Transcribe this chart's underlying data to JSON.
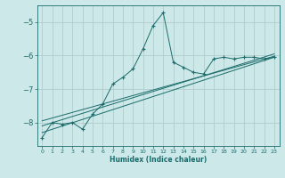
{
  "title": "",
  "xlabel": "Humidex (Indice chaleur)",
  "ylabel": "",
  "background_color": "#cde8e8",
  "grid_color": "#b0cccc",
  "line_color": "#1a6b6b",
  "xlim": [
    -0.5,
    23.5
  ],
  "ylim": [
    -8.7,
    -4.5
  ],
  "yticks": [
    -8,
    -7,
    -6,
    -5
  ],
  "xticks": [
    0,
    1,
    2,
    3,
    4,
    5,
    6,
    7,
    8,
    9,
    10,
    11,
    12,
    13,
    14,
    15,
    16,
    17,
    18,
    19,
    20,
    21,
    22,
    23
  ],
  "main_x": [
    0,
    1,
    2,
    3,
    4,
    5,
    6,
    7,
    8,
    9,
    10,
    11,
    12,
    13,
    14,
    15,
    16,
    17,
    18,
    19,
    20,
    21,
    22,
    23
  ],
  "main_y": [
    -8.45,
    -8.0,
    -8.05,
    -8.0,
    -8.2,
    -7.75,
    -7.45,
    -6.85,
    -6.65,
    -6.4,
    -5.8,
    -5.1,
    -4.72,
    -6.2,
    -6.35,
    -6.5,
    -6.55,
    -6.1,
    -6.05,
    -6.1,
    -6.05,
    -6.05,
    -6.1,
    -6.05
  ],
  "line1_x": [
    0,
    23
  ],
  "line1_y": [
    -8.3,
    -6.05
  ],
  "line2_x": [
    0,
    23
  ],
  "line2_y": [
    -8.1,
    -5.95
  ],
  "line3_x": [
    0,
    23
  ],
  "line3_y": [
    -7.95,
    -6.02
  ]
}
